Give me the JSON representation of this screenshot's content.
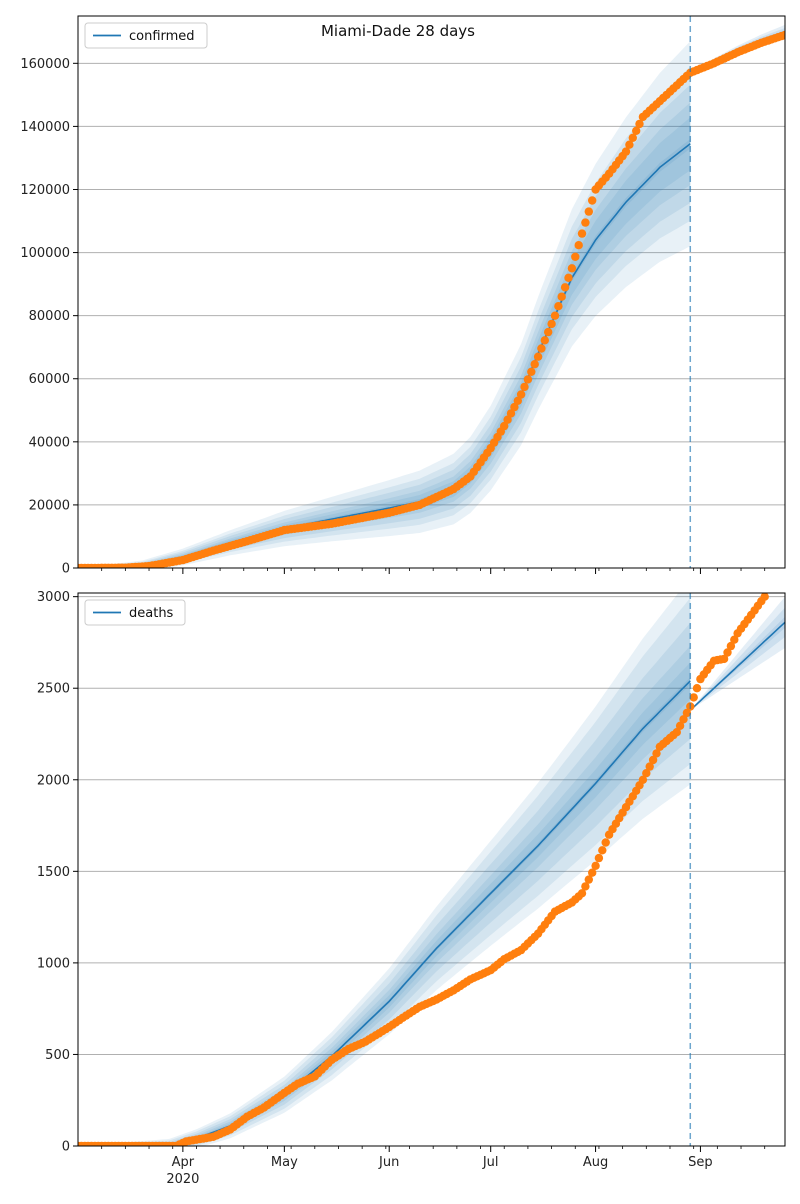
{
  "figure": {
    "title": "Miami-Dade 28 days",
    "colors": {
      "model": "#1f77b4",
      "observed": "#ff7f0e",
      "band": "#1f77b4",
      "grid": "#b0b0b0",
      "vline": "#1f77b4"
    },
    "forecast_start": "2020-08-29",
    "x_range": [
      "2020-03-01",
      "2020-09-26"
    ]
  },
  "chart_data": [
    {
      "type": "line",
      "panel": "top",
      "legend": "confirmed",
      "legend_position": "top-left",
      "grid": "horizontal",
      "ylim": [
        0,
        175000
      ],
      "y_ticks": [
        0,
        20000,
        40000,
        60000,
        80000,
        100000,
        120000,
        140000,
        160000
      ],
      "y_tick_labels": [
        "0",
        "20000",
        "40000",
        "60000",
        "80000",
        "100000",
        "120000",
        "140000",
        "160000"
      ],
      "x_ticks": [
        {
          "date": "2020-04-01",
          "label": "Apr",
          "sub": "2020"
        },
        {
          "date": "2020-05-01",
          "label": "May",
          "sub": ""
        },
        {
          "date": "2020-06-01",
          "label": "Jun",
          "sub": ""
        },
        {
          "date": "2020-07-01",
          "label": "Jul",
          "sub": ""
        },
        {
          "date": "2020-08-01",
          "label": "Aug",
          "sub": ""
        },
        {
          "date": "2020-09-01",
          "label": "Sep",
          "sub": ""
        }
      ],
      "model": {
        "name": "confirmed",
        "points": [
          [
            "2020-03-01",
            0
          ],
          [
            "2020-03-20",
            800
          ],
          [
            "2020-04-01",
            3500
          ],
          [
            "2020-04-15",
            8000
          ],
          [
            "2020-05-01",
            12500
          ],
          [
            "2020-05-15",
            15500
          ],
          [
            "2020-06-01",
            19000
          ],
          [
            "2020-06-10",
            21000
          ],
          [
            "2020-06-20",
            25000
          ],
          [
            "2020-06-25",
            29500
          ],
          [
            "2020-07-01",
            38000
          ],
          [
            "2020-07-10",
            55000
          ],
          [
            "2020-07-15",
            68000
          ],
          [
            "2020-07-20",
            80000
          ],
          [
            "2020-07-25",
            92000
          ],
          [
            "2020-08-01",
            104000
          ],
          [
            "2020-08-10",
            116000
          ],
          [
            "2020-08-20",
            127000
          ],
          [
            "2020-08-29",
            134500
          ]
        ],
        "band_widths": [
          1500,
          3000,
          5000,
          8000,
          11000,
          15000
        ],
        "band_growth": [
          0,
          0.04,
          0.06,
          0.08,
          0.1,
          0.13
        ],
        "forecast": [
          [
            "2020-08-29",
            157000
          ],
          [
            "2020-09-05",
            161000
          ],
          [
            "2020-09-12",
            164500
          ],
          [
            "2020-09-19",
            167500
          ],
          [
            "2020-09-26",
            170000
          ]
        ],
        "forecast_band_widths": [
          500,
          1200,
          2200
        ]
      },
      "observed": [
        [
          "2020-03-01",
          0
        ],
        [
          "2020-03-15",
          100
        ],
        [
          "2020-03-22",
          600
        ],
        [
          "2020-04-01",
          2500
        ],
        [
          "2020-04-10",
          5500
        ],
        [
          "2020-04-20",
          8500
        ],
        [
          "2020-05-01",
          12000
        ],
        [
          "2020-05-15",
          14000
        ],
        [
          "2020-06-01",
          17500
        ],
        [
          "2020-06-10",
          20000
        ],
        [
          "2020-06-20",
          25000
        ],
        [
          "2020-06-25",
          29000
        ],
        [
          "2020-07-01",
          38000
        ],
        [
          "2020-07-05",
          45000
        ],
        [
          "2020-07-10",
          55000
        ],
        [
          "2020-07-15",
          67000
        ],
        [
          "2020-07-20",
          80000
        ],
        [
          "2020-07-25",
          95000
        ],
        [
          "2020-07-28",
          106000
        ],
        [
          "2020-08-01",
          120000
        ],
        [
          "2020-08-05",
          125000
        ],
        [
          "2020-08-10",
          132000
        ],
        [
          "2020-08-15",
          143000
        ],
        [
          "2020-08-20",
          148000
        ],
        [
          "2020-08-25",
          153000
        ],
        [
          "2020-08-29",
          157000
        ],
        [
          "2020-09-05",
          160000
        ],
        [
          "2020-09-12",
          163500
        ],
        [
          "2020-09-19",
          166500
        ],
        [
          "2020-09-26",
          169000
        ]
      ]
    },
    {
      "type": "line",
      "panel": "bottom",
      "legend": "deaths",
      "legend_position": "top-left",
      "grid": "horizontal",
      "ylim": [
        0,
        3020
      ],
      "y_ticks": [
        0,
        500,
        1000,
        1500,
        2000,
        2500,
        3000
      ],
      "y_tick_labels": [
        "0",
        "500",
        "1000",
        "1500",
        "2000",
        "2500",
        "3000"
      ],
      "x_ticks": [
        {
          "date": "2020-04-01",
          "label": "Apr",
          "sub": "2020"
        },
        {
          "date": "2020-05-01",
          "label": "May",
          "sub": ""
        },
        {
          "date": "2020-06-01",
          "label": "Jun",
          "sub": ""
        },
        {
          "date": "2020-07-01",
          "label": "Jul",
          "sub": ""
        },
        {
          "date": "2020-08-01",
          "label": "Aug",
          "sub": ""
        },
        {
          "date": "2020-09-01",
          "label": "Sep",
          "sub": ""
        }
      ],
      "model": {
        "name": "deaths",
        "points": [
          [
            "2020-03-01",
            0
          ],
          [
            "2020-03-28",
            0
          ],
          [
            "2020-04-05",
            40
          ],
          [
            "2020-04-15",
            110
          ],
          [
            "2020-05-01",
            280
          ],
          [
            "2020-05-15",
            490
          ],
          [
            "2020-06-01",
            790
          ],
          [
            "2020-06-15",
            1080
          ],
          [
            "2020-07-01",
            1380
          ],
          [
            "2020-07-15",
            1640
          ],
          [
            "2020-08-01",
            1980
          ],
          [
            "2020-08-15",
            2280
          ],
          [
            "2020-08-29",
            2540
          ]
        ],
        "band_widths": [
          20,
          50,
          90,
          140,
          200,
          260
        ],
        "band_growth": [
          0,
          0.02,
          0.04,
          0.07,
          0.1,
          0.12
        ],
        "forecast": [
          [
            "2020-08-29",
            2380
          ],
          [
            "2020-09-05",
            2500
          ],
          [
            "2020-09-12",
            2620
          ],
          [
            "2020-09-19",
            2740
          ],
          [
            "2020-09-26",
            2860
          ]
        ],
        "forecast_band_widths": [
          30,
          80,
          140
        ]
      },
      "observed": [
        [
          "2020-03-01",
          0
        ],
        [
          "2020-03-30",
          0
        ],
        [
          "2020-04-02",
          25
        ],
        [
          "2020-04-10",
          50
        ],
        [
          "2020-04-15",
          90
        ],
        [
          "2020-04-20",
          160
        ],
        [
          "2020-04-25",
          210
        ],
        [
          "2020-05-01",
          290
        ],
        [
          "2020-05-05",
          340
        ],
        [
          "2020-05-10",
          380
        ],
        [
          "2020-05-15",
          470
        ],
        [
          "2020-05-20",
          530
        ],
        [
          "2020-05-25",
          570
        ],
        [
          "2020-06-01",
          650
        ],
        [
          "2020-06-05",
          700
        ],
        [
          "2020-06-10",
          760
        ],
        [
          "2020-06-15",
          800
        ],
        [
          "2020-06-20",
          850
        ],
        [
          "2020-06-25",
          910
        ],
        [
          "2020-07-01",
          960
        ],
        [
          "2020-07-05",
          1020
        ],
        [
          "2020-07-10",
          1070
        ],
        [
          "2020-07-15",
          1160
        ],
        [
          "2020-07-20",
          1280
        ],
        [
          "2020-07-25",
          1330
        ],
        [
          "2020-07-28",
          1380
        ],
        [
          "2020-08-01",
          1530
        ],
        [
          "2020-08-05",
          1700
        ],
        [
          "2020-08-10",
          1850
        ],
        [
          "2020-08-15",
          2000
        ],
        [
          "2020-08-20",
          2180
        ],
        [
          "2020-08-25",
          2260
        ],
        [
          "2020-08-29",
          2400
        ],
        [
          "2020-09-01",
          2550
        ],
        [
          "2020-09-05",
          2650
        ],
        [
          "2020-09-08",
          2660
        ],
        [
          "2020-09-12",
          2800
        ],
        [
          "2020-09-16",
          2900
        ],
        [
          "2020-09-20",
          3000
        ]
      ]
    }
  ]
}
